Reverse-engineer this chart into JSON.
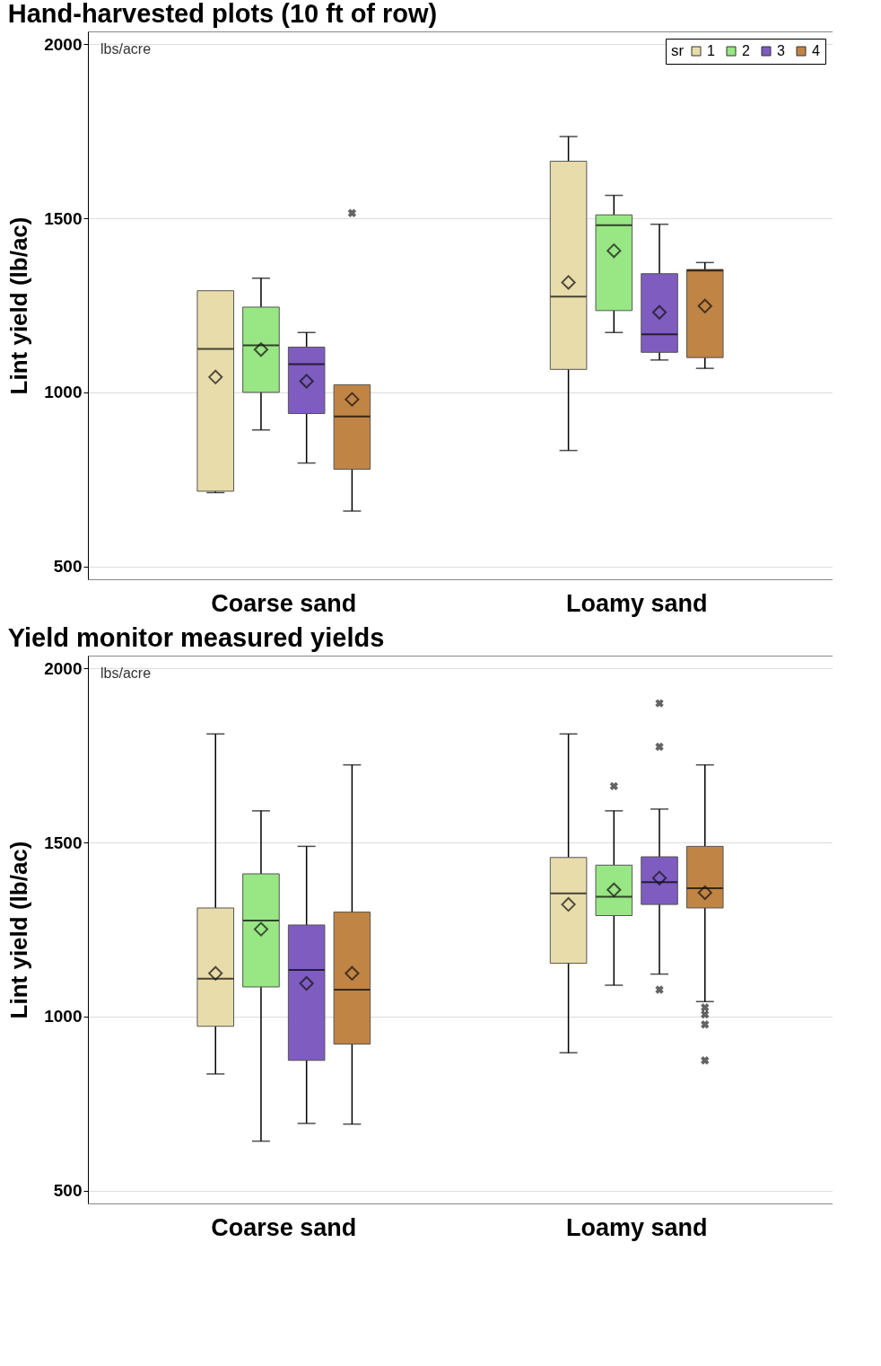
{
  "chart_data": [
    {
      "type": "box",
      "title": "Hand-harvested plots (10 ft of row)",
      "ylabel": "Lint yield (lb/ac)",
      "categories": [
        "Coarse sand",
        "Loamy sand"
      ],
      "legend_title": "sr",
      "legend": "top right",
      "grid": "y",
      "ylim": [
        463,
        2037
      ],
      "yticks": [
        500,
        1000,
        1500,
        2000
      ],
      "annotations": [
        "lbs/acre"
      ],
      "series": [
        {
          "name": "1",
          "color": "#e8dcaa",
          "boxes": [
            {
              "low": 712,
              "q1": 716,
              "median": 1125,
              "q3": 1292,
              "high": 1292,
              "mean": 1044
            },
            {
              "low": 833,
              "q1": 1066,
              "median": 1275,
              "q3": 1664,
              "high": 1735,
              "mean": 1316
            }
          ]
        },
        {
          "name": "2",
          "color": "#98e684",
          "boxes": [
            {
              "low": 892,
              "q1": 1000,
              "median": 1135,
              "q3": 1245,
              "high": 1328,
              "mean": 1123
            },
            {
              "low": 1172,
              "q1": 1235,
              "median": 1480,
              "q3": 1510,
              "high": 1566,
              "mean": 1407
            }
          ]
        },
        {
          "name": "3",
          "color": "#7e5cc0",
          "boxes": [
            {
              "low": 797,
              "q1": 939,
              "median": 1081,
              "q3": 1130,
              "high": 1172,
              "mean": 1032
            },
            {
              "low": 1093,
              "q1": 1115,
              "median": 1167,
              "q3": 1341,
              "high": 1483,
              "mean": 1230
            }
          ]
        },
        {
          "name": "4",
          "color": "#c08444",
          "boxes": [
            {
              "low": 659,
              "q1": 779,
              "median": 931,
              "q3": 1022,
              "high": 1022,
              "mean": 980,
              "outliers": [
                1515
              ]
            },
            {
              "low": 1069,
              "q1": 1100,
              "median": 1350,
              "q3": 1353,
              "high": 1373,
              "mean": 1248
            }
          ]
        }
      ]
    },
    {
      "type": "box",
      "title": "Yield monitor measured yields",
      "ylabel": "Lint yield (lb/ac)",
      "categories": [
        "Coarse sand",
        "Loamy sand"
      ],
      "grid": "y",
      "ylim": [
        463,
        2037
      ],
      "yticks": [
        500,
        1000,
        1500,
        2000
      ],
      "annotations": [
        "lbs/acre"
      ],
      "series": [
        {
          "color": "#e8dcaa",
          "boxes": [
            {
              "low": 835,
              "q1": 972,
              "median": 1109,
              "q3": 1312,
              "high": 1812,
              "mean": 1124
            },
            {
              "low": 896,
              "q1": 1153,
              "median": 1354,
              "q3": 1457,
              "high": 1812,
              "mean": 1322
            }
          ]
        },
        {
          "color": "#98e684",
          "boxes": [
            {
              "low": 642,
              "q1": 1085,
              "median": 1276,
              "q3": 1410,
              "high": 1591,
              "mean": 1251
            },
            {
              "low": 1090,
              "q1": 1290,
              "median": 1344,
              "q3": 1435,
              "high": 1591,
              "mean": 1364,
              "outliers": [
                1662
              ]
            }
          ]
        },
        {
          "color": "#7e5cc0",
          "boxes": [
            {
              "low": 693,
              "q1": 874,
              "median": 1134,
              "q3": 1263,
              "high": 1489,
              "mean": 1095
            },
            {
              "low": 1122,
              "q1": 1322,
              "median": 1386,
              "q3": 1459,
              "high": 1596,
              "mean": 1398,
              "outliers": [
                1900,
                1775,
                1077
              ]
            }
          ]
        },
        {
          "color": "#c08444",
          "boxes": [
            {
              "low": 691,
              "q1": 921,
              "median": 1077,
              "q3": 1300,
              "high": 1723,
              "mean": 1124
            },
            {
              "low": 1043,
              "q1": 1312,
              "median": 1369,
              "q3": 1489,
              "high": 1723,
              "mean": 1356,
              "outliers": [
                1026,
                1006,
                977,
                874
              ]
            }
          ]
        }
      ]
    }
  ]
}
